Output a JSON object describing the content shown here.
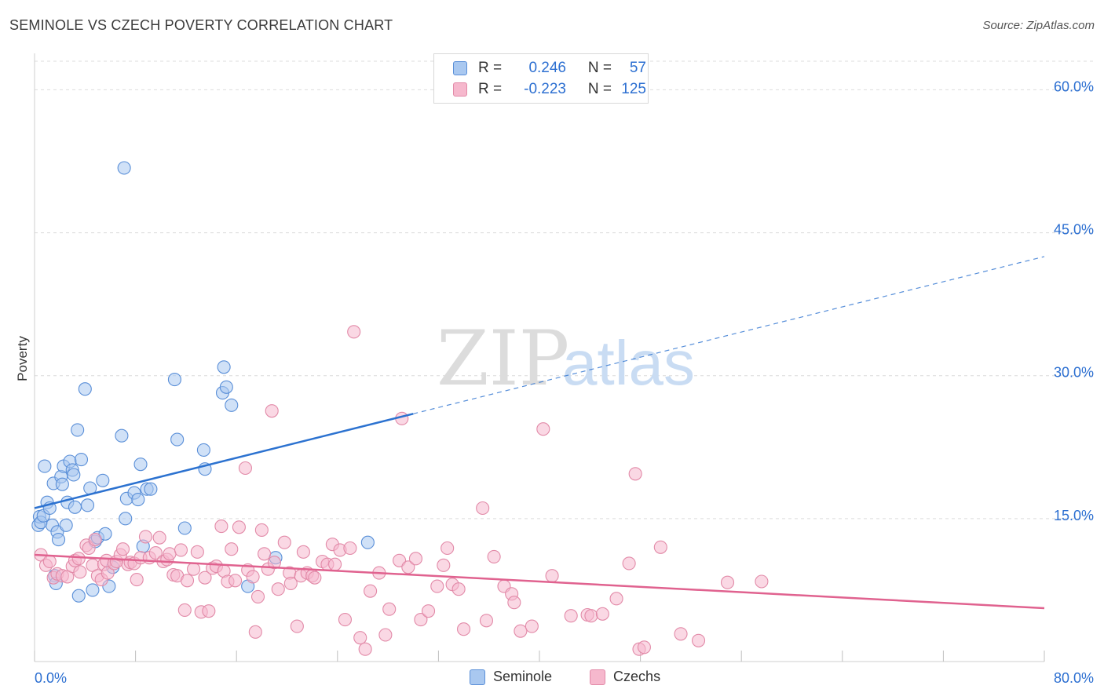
{
  "header": {
    "title": "SEMINOLE VS CZECH POVERTY CORRELATION CHART",
    "source": "Source: ZipAtlas.com"
  },
  "legend": {
    "rows": [
      {
        "r_label": "R =",
        "r_value": "0.246",
        "n_label": "N =",
        "n_value": "57"
      },
      {
        "r_label": "R =",
        "r_value": "-0.223",
        "n_label": "N =",
        "n_value": "125"
      }
    ]
  },
  "watermark": {
    "zip": "ZIP",
    "atlas": "atlas"
  },
  "colors": {
    "seminole_fill": "#a9c8f0",
    "seminole_stroke": "#5a8fd8",
    "seminole_line": "#2c72d0",
    "czech_fill": "#f6b8cd",
    "czech_stroke": "#e28aa8",
    "czech_line": "#e0628f",
    "value_text": "#2c6fd1",
    "grid": "#dcdcdc"
  },
  "chart_data": {
    "type": "scatter",
    "title": "SEMINOLE VS CZECH POVERTY CORRELATION CHART",
    "xlabel": "",
    "ylabel": "Poverty",
    "xlim": [
      0,
      80
    ],
    "ylim": [
      0,
      63
    ],
    "x_tick_labels": [
      "0.0%",
      "80.0%"
    ],
    "y_ticks": [
      15,
      30,
      45,
      60
    ],
    "y_tick_labels": [
      "15.0%",
      "30.0%",
      "45.0%",
      "60.0%"
    ],
    "grid": true,
    "legend_position": "top-center",
    "series": [
      {
        "name": "Seminole",
        "points": [
          [
            0.3,
            14.3
          ],
          [
            0.4,
            15.2
          ],
          [
            0.5,
            14.6
          ],
          [
            0.7,
            15.3
          ],
          [
            0.8,
            20.5
          ],
          [
            1.0,
            16.7
          ],
          [
            1.2,
            16.1
          ],
          [
            1.4,
            14.3
          ],
          [
            1.5,
            18.7
          ],
          [
            1.6,
            9.0
          ],
          [
            1.7,
            8.2
          ],
          [
            1.8,
            13.6
          ],
          [
            1.9,
            12.8
          ],
          [
            2.1,
            19.4
          ],
          [
            2.2,
            18.6
          ],
          [
            2.3,
            20.5
          ],
          [
            2.5,
            14.3
          ],
          [
            2.6,
            16.7
          ],
          [
            2.8,
            21.0
          ],
          [
            3.0,
            20.1
          ],
          [
            3.1,
            19.6
          ],
          [
            3.2,
            16.2
          ],
          [
            3.4,
            24.3
          ],
          [
            3.5,
            6.9
          ],
          [
            3.7,
            21.2
          ],
          [
            4.0,
            28.6
          ],
          [
            4.2,
            16.4
          ],
          [
            4.4,
            18.2
          ],
          [
            4.6,
            7.5
          ],
          [
            4.8,
            12.6
          ],
          [
            5.0,
            13.0
          ],
          [
            5.4,
            19.0
          ],
          [
            5.6,
            13.4
          ],
          [
            5.9,
            7.9
          ],
          [
            6.2,
            9.9
          ],
          [
            6.9,
            23.7
          ],
          [
            7.1,
            51.8
          ],
          [
            7.2,
            15.0
          ],
          [
            7.3,
            17.1
          ],
          [
            7.9,
            17.7
          ],
          [
            8.2,
            17.0
          ],
          [
            8.4,
            20.7
          ],
          [
            8.6,
            12.1
          ],
          [
            8.9,
            18.1
          ],
          [
            9.2,
            18.1
          ],
          [
            11.1,
            29.6
          ],
          [
            11.3,
            23.3
          ],
          [
            11.9,
            14.0
          ],
          [
            13.4,
            22.2
          ],
          [
            13.5,
            20.2
          ],
          [
            14.9,
            28.2
          ],
          [
            15.0,
            30.9
          ],
          [
            15.2,
            28.8
          ],
          [
            15.6,
            26.9
          ],
          [
            16.9,
            7.9
          ],
          [
            19.1,
            10.9
          ],
          [
            26.4,
            12.5
          ]
        ],
        "trend_line": {
          "x1": 0,
          "y1": 16.1,
          "x2": 30,
          "y2": 26.0
        },
        "trend_dashed": {
          "x1": 30,
          "y1": 26.0,
          "x2": 80,
          "y2": 42.5
        }
      },
      {
        "name": "Czechs",
        "points": [
          [
            0.5,
            11.2
          ],
          [
            0.9,
            10.1
          ],
          [
            1.2,
            10.5
          ],
          [
            1.5,
            8.8
          ],
          [
            1.8,
            9.2
          ],
          [
            2.2,
            9.0
          ],
          [
            2.6,
            8.9
          ],
          [
            3.0,
            10.0
          ],
          [
            3.2,
            10.6
          ],
          [
            3.5,
            10.8
          ],
          [
            3.6,
            9.4
          ],
          [
            4.1,
            12.2
          ],
          [
            4.3,
            11.9
          ],
          [
            4.6,
            10.1
          ],
          [
            4.8,
            12.8
          ],
          [
            5.0,
            9.0
          ],
          [
            5.3,
            8.6
          ],
          [
            5.5,
            10.2
          ],
          [
            5.7,
            10.6
          ],
          [
            5.8,
            9.3
          ],
          [
            6.3,
            10.3
          ],
          [
            6.5,
            10.5
          ],
          [
            6.8,
            11.2
          ],
          [
            7.0,
            11.8
          ],
          [
            7.4,
            10.2
          ],
          [
            7.6,
            10.4
          ],
          [
            7.9,
            10.3
          ],
          [
            8.1,
            8.6
          ],
          [
            8.4,
            10.9
          ],
          [
            8.8,
            13.1
          ],
          [
            9.1,
            10.9
          ],
          [
            9.6,
            11.4
          ],
          [
            9.9,
            13.0
          ],
          [
            10.2,
            10.5
          ],
          [
            10.5,
            10.7
          ],
          [
            10.7,
            11.3
          ],
          [
            11.0,
            9.1
          ],
          [
            11.3,
            9.0
          ],
          [
            11.6,
            11.7
          ],
          [
            11.9,
            5.4
          ],
          [
            12.1,
            8.5
          ],
          [
            12.6,
            9.7
          ],
          [
            12.9,
            11.5
          ],
          [
            13.2,
            5.2
          ],
          [
            13.5,
            8.8
          ],
          [
            13.8,
            5.3
          ],
          [
            14.1,
            9.8
          ],
          [
            14.4,
            10.0
          ],
          [
            14.8,
            14.2
          ],
          [
            15.0,
            9.5
          ],
          [
            15.3,
            8.4
          ],
          [
            15.6,
            11.8
          ],
          [
            15.9,
            8.5
          ],
          [
            16.2,
            14.1
          ],
          [
            16.7,
            20.3
          ],
          [
            16.9,
            9.6
          ],
          [
            17.3,
            8.9
          ],
          [
            17.5,
            3.1
          ],
          [
            17.7,
            6.8
          ],
          [
            18.0,
            13.8
          ],
          [
            18.2,
            11.3
          ],
          [
            18.5,
            9.7
          ],
          [
            18.8,
            26.3
          ],
          [
            19.0,
            10.4
          ],
          [
            19.3,
            7.6
          ],
          [
            19.8,
            12.5
          ],
          [
            20.2,
            9.3
          ],
          [
            20.3,
            8.2
          ],
          [
            20.8,
            3.7
          ],
          [
            21.1,
            9.0
          ],
          [
            21.3,
            11.5
          ],
          [
            21.6,
            9.3
          ],
          [
            22.0,
            9.0
          ],
          [
            22.2,
            8.8
          ],
          [
            22.8,
            10.5
          ],
          [
            23.2,
            10.2
          ],
          [
            23.6,
            12.3
          ],
          [
            23.8,
            10.2
          ],
          [
            24.2,
            11.7
          ],
          [
            24.6,
            4.4
          ],
          [
            25.0,
            11.9
          ],
          [
            25.3,
            34.6
          ],
          [
            25.8,
            2.5
          ],
          [
            26.2,
            1.3
          ],
          [
            26.6,
            7.4
          ],
          [
            27.3,
            9.3
          ],
          [
            27.8,
            2.8
          ],
          [
            28.1,
            5.5
          ],
          [
            28.9,
            10.6
          ],
          [
            29.1,
            25.5
          ],
          [
            29.6,
            9.9
          ],
          [
            30.2,
            10.8
          ],
          [
            30.6,
            4.4
          ],
          [
            31.2,
            5.3
          ],
          [
            31.9,
            7.9
          ],
          [
            32.4,
            10.1
          ],
          [
            32.7,
            11.9
          ],
          [
            33.1,
            8.1
          ],
          [
            33.6,
            7.6
          ],
          [
            34.0,
            3.4
          ],
          [
            35.5,
            16.1
          ],
          [
            35.8,
            4.3
          ],
          [
            36.4,
            11.0
          ],
          [
            37.2,
            7.9
          ],
          [
            37.8,
            7.1
          ],
          [
            38.0,
            6.2
          ],
          [
            38.5,
            3.2
          ],
          [
            39.4,
            3.7
          ],
          [
            40.3,
            24.4
          ],
          [
            41.0,
            9.0
          ],
          [
            42.5,
            4.8
          ],
          [
            43.8,
            4.9
          ],
          [
            44.1,
            4.8
          ],
          [
            45.0,
            5.0
          ],
          [
            46.1,
            6.6
          ],
          [
            47.6,
            19.7
          ],
          [
            47.1,
            10.3
          ],
          [
            47.9,
            1.3
          ],
          [
            48.3,
            1.5
          ],
          [
            49.6,
            12.0
          ],
          [
            51.2,
            2.9
          ],
          [
            52.6,
            2.2
          ],
          [
            54.9,
            8.3
          ],
          [
            57.6,
            8.4
          ]
        ],
        "trend_line": {
          "x1": 0,
          "y1": 11.2,
          "x2": 80,
          "y2": 5.6
        }
      }
    ]
  },
  "bottom_legend": {
    "items": [
      {
        "label": "Seminole"
      },
      {
        "label": "Czechs"
      }
    ]
  }
}
